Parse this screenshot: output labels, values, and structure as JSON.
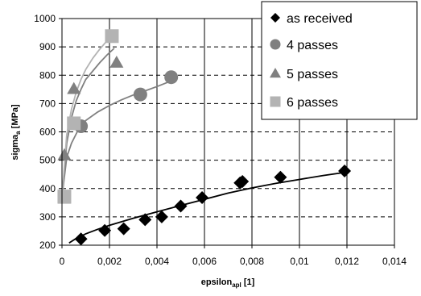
{
  "chart_data": {
    "type": "scatter",
    "xlabel": {
      "main": "epsilon",
      "sub": "apl",
      "tail": " [1]"
    },
    "ylabel": {
      "main": "sigma",
      "sub": "a",
      "tail": " [MPa]"
    },
    "xlim": [
      0,
      0.014
    ],
    "ylim": [
      200,
      1000
    ],
    "x_ticks": [
      0,
      0.002,
      0.004,
      0.006,
      0.008,
      0.01,
      0.012,
      0.014
    ],
    "x_tick_labels": [
      "0",
      "0,002",
      "0,004",
      "0,006",
      "0,008",
      "0,01",
      "0,012",
      "0,014"
    ],
    "y_ticks": [
      200,
      300,
      400,
      500,
      600,
      700,
      800,
      900,
      1000
    ],
    "y_tick_labels": [
      "200",
      "300",
      "400",
      "500",
      "600",
      "700",
      "800",
      "900",
      "1000"
    ],
    "grid": {
      "x": "solid",
      "y": "dashed"
    },
    "legend_position": "top-right",
    "series": [
      {
        "name": "as received",
        "marker": "diamond",
        "color": "#000000",
        "x": [
          0.0008,
          0.0018,
          0.0026,
          0.0035,
          0.0042,
          0.005,
          0.0059,
          0.0075,
          0.0076,
          0.0092,
          0.0119
        ],
        "y": [
          222,
          252,
          258,
          290,
          300,
          338,
          368,
          420,
          425,
          440,
          462
        ],
        "trend": {
          "color": "#000000",
          "x": [
            0.0003,
            0.0006,
            0.001,
            0.0015,
            0.002,
            0.003,
            0.004,
            0.005,
            0.006,
            0.007,
            0.008,
            0.009,
            0.01,
            0.011,
            0.012
          ],
          "y": [
            208,
            224,
            240,
            256,
            270,
            295,
            318,
            340,
            362,
            384,
            402,
            418,
            432,
            446,
            458
          ]
        }
      },
      {
        "name": "4 passes",
        "marker": "circle",
        "color": "#808080",
        "x": [
          0.0008,
          0.0033,
          0.0046
        ],
        "y": [
          620,
          732,
          793
        ],
        "trend": {
          "color": "#808080",
          "x": [
            0,
            0.0002,
            0.0004,
            0.0007,
            0.001,
            0.0015,
            0.002,
            0.0025,
            0.003,
            0.0035,
            0.004,
            0.0046
          ],
          "y": [
            370,
            510,
            560,
            610,
            640,
            670,
            693,
            713,
            730,
            745,
            760,
            780
          ]
        }
      },
      {
        "name": "5 passes",
        "marker": "triangle",
        "color": "#808080",
        "x": [
          0.0001,
          0.0001,
          0.0005,
          0.0023
        ],
        "y": [
          365,
          518,
          752,
          845
        ],
        "trend": {
          "color": "#808080",
          "x": [
            0,
            0.0002,
            0.0004,
            0.0006,
            0.0008,
            0.001,
            0.0013,
            0.0016,
            0.0019,
            0.0022
          ],
          "y": [
            370,
            560,
            650,
            710,
            750,
            785,
            815,
            845,
            872,
            895
          ]
        }
      },
      {
        "name": "6 passes",
        "marker": "square",
        "color": "#b3b3b3",
        "x": [
          0.0001,
          0.0005,
          0.0021
        ],
        "y": [
          372,
          630,
          938
        ],
        "trend": {
          "color": "#b3b3b3",
          "x": [
            0,
            0.0002,
            0.0004,
            0.0006,
            0.0008,
            0.001,
            0.0013,
            0.0016,
            0.0019,
            0.0021
          ],
          "y": [
            370,
            590,
            680,
            740,
            785,
            820,
            860,
            893,
            922,
            938
          ]
        }
      }
    ]
  }
}
